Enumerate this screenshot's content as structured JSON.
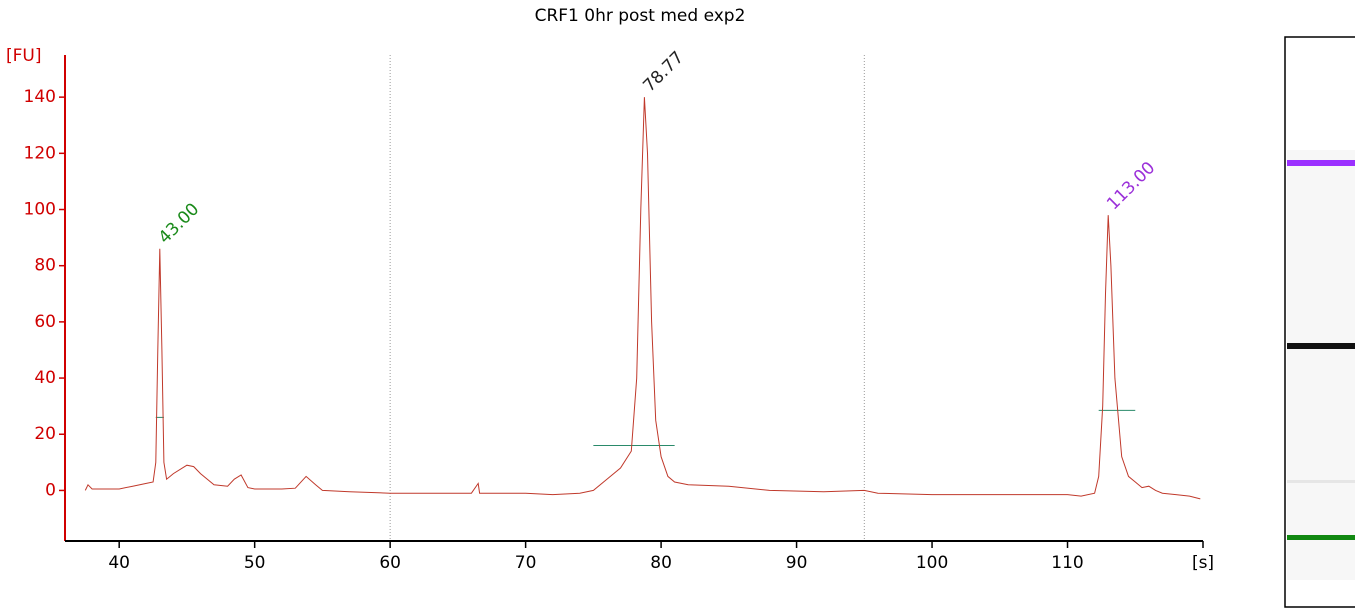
{
  "chart_data": {
    "type": "line",
    "title": "CRF1 0hr post med exp2",
    "y_label": "[FU]",
    "x": [
      37.5,
      37.7,
      38,
      39,
      40,
      41,
      42,
      42.5,
      42.7,
      42.85,
      43,
      43.15,
      43.3,
      43.5,
      44,
      45,
      45.5,
      46,
      47,
      48,
      48.5,
      49,
      49.5,
      50,
      52,
      53,
      53.8,
      54.5,
      55,
      57,
      60,
      62,
      64,
      66,
      66.5,
      66.6,
      70,
      72,
      74,
      75,
      76,
      77,
      77.8,
      78.2,
      78.5,
      78.77,
      79,
      79.3,
      79.6,
      80,
      80.5,
      81,
      82,
      85,
      88,
      92,
      95,
      96,
      100,
      105,
      110,
      111,
      112,
      112.3,
      112.6,
      112.8,
      113,
      113.2,
      113.5,
      114,
      114.5,
      115,
      115.5,
      116,
      116.5,
      117,
      118,
      119,
      119.8
    ],
    "series": [
      {
        "color": "#c0392b",
        "values": [
          0,
          2,
          0.5,
          0.5,
          0.5,
          1.5,
          2.5,
          3,
          10,
          50,
          86,
          50,
          10,
          4,
          6,
          9,
          8.5,
          6,
          2,
          1.5,
          4,
          5.5,
          1,
          0.5,
          0.5,
          0.8,
          5,
          2,
          0,
          -0.5,
          -1,
          -1,
          -1,
          -1,
          2.5,
          -1,
          -1,
          -1.5,
          -1,
          0,
          4,
          8,
          14,
          40,
          100,
          140,
          120,
          60,
          25,
          12,
          5,
          3,
          2,
          1.5,
          0,
          -0.5,
          0,
          -1,
          -1.5,
          -1.5,
          -1.5,
          -2,
          -1,
          5,
          30,
          70,
          98,
          80,
          40,
          12,
          5,
          3,
          1,
          1.5,
          0,
          -1,
          -1.5,
          -2,
          -3
        ]
      }
    ],
    "xlim": [
      36,
      120
    ],
    "ylim": [
      -18,
      155
    ],
    "xticks": [
      40,
      50,
      60,
      70,
      80,
      90,
      100,
      110,
      {
        "value": 120,
        "label": "[s]"
      }
    ],
    "yticks": [
      0,
      20,
      40,
      60,
      80,
      100,
      120,
      140
    ],
    "axis_color": "#d00000",
    "vlines": [
      60,
      95
    ],
    "half_height_lines": [
      {
        "x": [
          42.7,
          43.3
        ],
        "y": 26
      },
      {
        "x": [
          75,
          81
        ],
        "y": 16
      },
      {
        "x": [
          112.3,
          115
        ],
        "y": 28.5
      }
    ],
    "annotations": [
      {
        "text": "43.00",
        "x": 43,
        "y": 86,
        "color": "#1a8a1a"
      },
      {
        "text": "78.77",
        "x": 78.77,
        "y": 140,
        "color": "#222222"
      },
      {
        "text": "113.00",
        "x": 113,
        "y": 98,
        "color": "#9b30d9"
      }
    ]
  }
}
